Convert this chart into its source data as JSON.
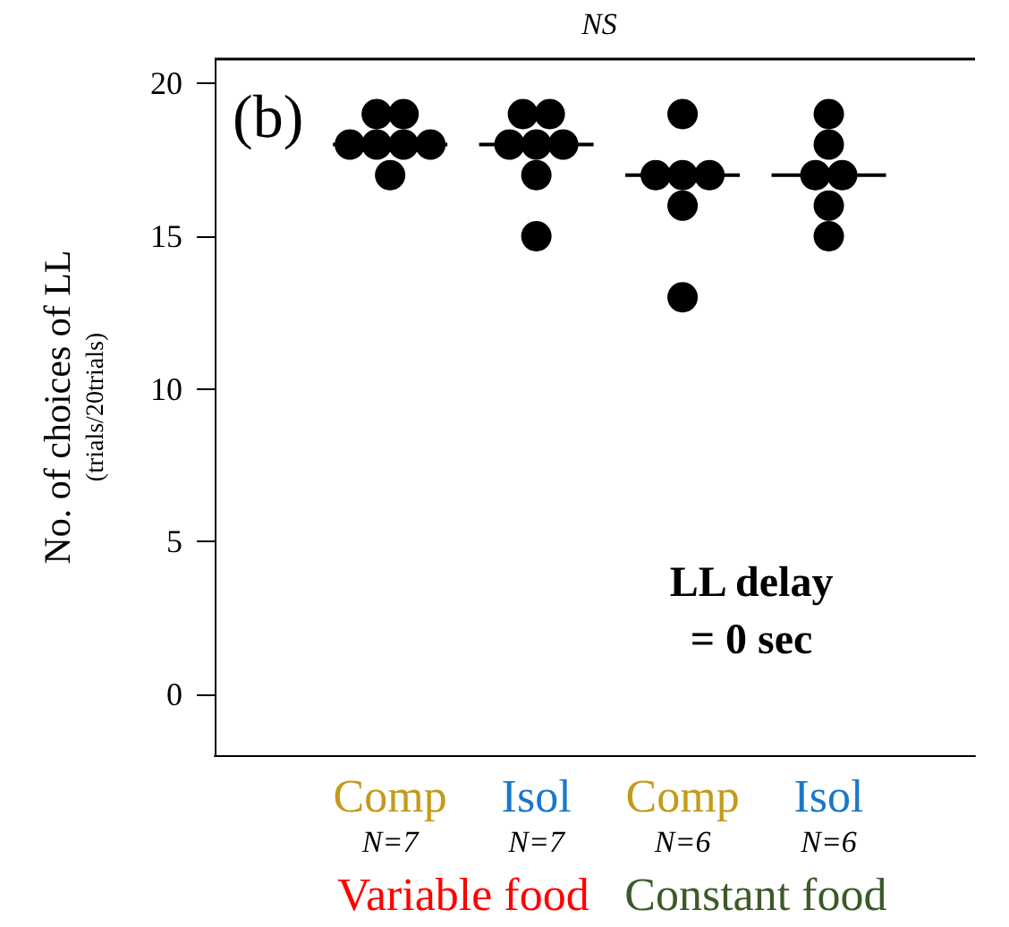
{
  "chart_data": {
    "type": "scatter",
    "title": "NS",
    "ylabel": "No. of choices of LL\n(trials/20trials)",
    "categories": [
      "Comp\nN=7",
      "Isol\nN=7",
      "Comp\nN=6",
      "Isol\nN=6"
    ],
    "series": [
      {
        "color": "#000000",
        "marker": "circle",
        "x": [
          "Comp\nN=7",
          "Comp\nN=7",
          "Comp\nN=7",
          "Comp\nN=7",
          "Comp\nN=7",
          "Comp\nN=7",
          "Comp\nN=7",
          "Isol\nN=7",
          "Isol\nN=7",
          "Isol\nN=7",
          "Isol\nN=7",
          "Isol\nN=7",
          "Isol\nN=7",
          "Isol\nN=7",
          "Comp\nN=6",
          "Comp\nN=6",
          "Comp\nN=6",
          "Comp\nN=6",
          "Comp\nN=6",
          "Comp\nN=6",
          "Isol\nN=6",
          "Isol\nN=6",
          "Isol\nN=6",
          "Isol\nN=6",
          "Isol\nN=6",
          "Isol\nN=6"
        ],
        "values": [
          19,
          19,
          18,
          18,
          18,
          18,
          17,
          19,
          19,
          18,
          18,
          18,
          17,
          15,
          19,
          17,
          17,
          17,
          16,
          13,
          19,
          18,
          17,
          17,
          16,
          15
        ]
      },
      {
        "type": "box",
        "color": "#000000",
        "boxes": [
          {
            "low": 18,
            "q1": 18,
            "median": 18,
            "q3": 18,
            "high": 18
          },
          {
            "low": 18,
            "q1": 18,
            "median": 18,
            "q3": 18,
            "high": 18
          },
          {
            "low": 17,
            "q1": 17,
            "median": 17,
            "q3": 17,
            "high": 17
          },
          {
            "low": 17,
            "q1": 17,
            "median": 17,
            "q3": 17,
            "high": 17
          }
        ]
      }
    ],
    "ylim": [
      -2,
      20.8
    ],
    "yticks": [
      0,
      5,
      10,
      15,
      20
    ],
    "grid": false,
    "annotations": [
      "(b)",
      "LL delay\n= 0 sec",
      "Variable food",
      "Constant food"
    ]
  }
}
